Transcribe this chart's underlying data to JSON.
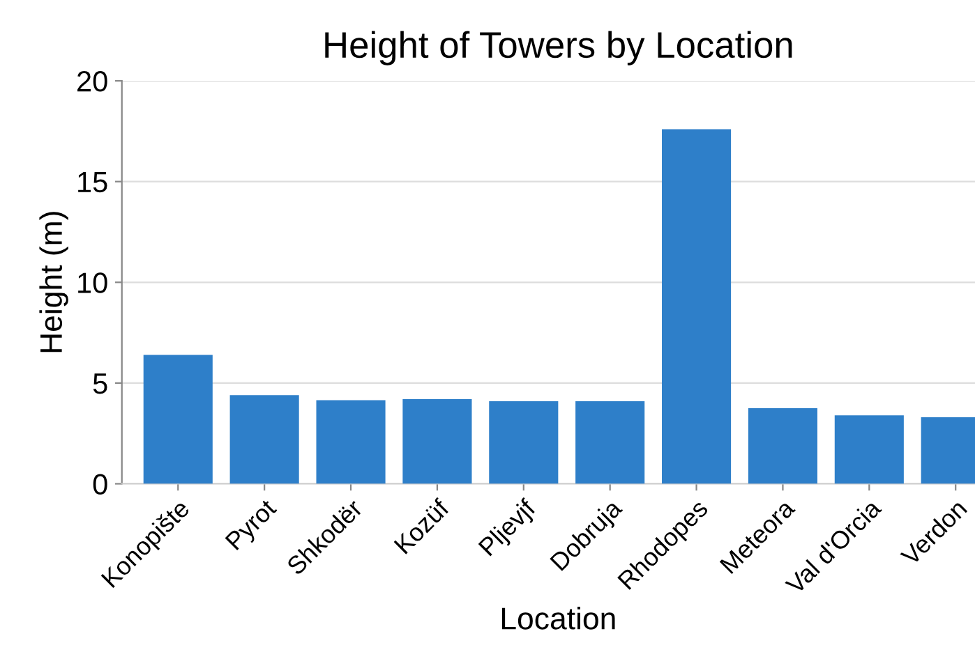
{
  "chart_data": {
    "type": "bar",
    "title": "Height of Towers by Location",
    "xlabel": "Location",
    "ylabel": "Height (m)",
    "categories": [
      "Konopište",
      "Pyrot",
      "Shkodër",
      "Kozüf",
      "Pljevjf",
      "Dobruja",
      "Rhodopes",
      "Meteora",
      "Val d'Orcia",
      "Verdon"
    ],
    "values": [
      6.4,
      4.4,
      4.15,
      4.2,
      4.1,
      4.1,
      17.6,
      3.75,
      3.4,
      3.3
    ],
    "color": "#2e7fc9",
    "ylim": [
      0,
      20
    ],
    "yticks": [
      0,
      5,
      10,
      15,
      20
    ],
    "grid": "y",
    "legend": false
  }
}
